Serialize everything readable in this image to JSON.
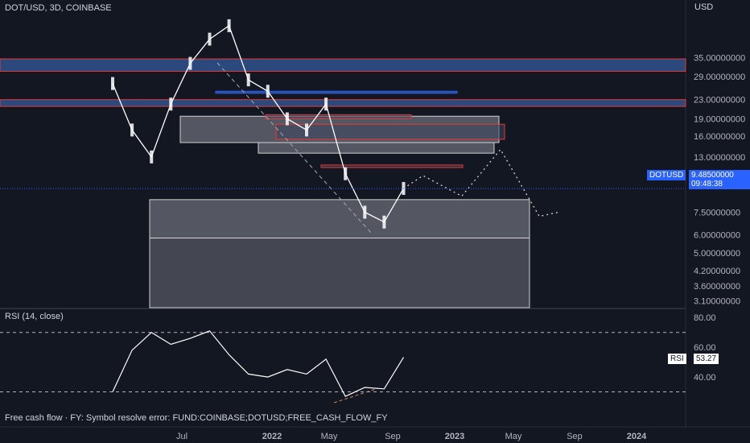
{
  "header": {
    "symbol_title": "DOT/USD, 3D, COINBASE",
    "currency": "USD"
  },
  "rsi_panel": {
    "title": "RSI (14, close)",
    "label": "RSI",
    "value": "53.27"
  },
  "footer": {
    "error_text": "Free cash flow · FY: Symbol resolve error: FUND:COINBASE;DOTUSD;FREE_CASH_FLOW_FY"
  },
  "price_tag": {
    "symbol": "DOTUSD",
    "price": "9.48500000",
    "countdown": "09:48:38"
  },
  "colors": {
    "background": "#131722",
    "candle_up": "#ffffff",
    "candle_down": "#ffffff",
    "zone_blue": "#2f4f86",
    "zone_red_border": "#e53935",
    "zone_grey": "#8a8d96",
    "accent": "#2962ff",
    "rsi_line": "#ffffff"
  },
  "chart_data": [
    {
      "type": "line",
      "title": "DOT/USD, 3D, COINBASE",
      "price_scale": "log",
      "ylim": [
        2.9,
        62
      ],
      "y_ticks": [
        "35.00000000",
        "29.00000000",
        "23.00000000",
        "19.00000000",
        "16.00000000",
        "13.00000000",
        "11.00000000",
        "7.50000000",
        "6.00000000",
        "5.00000000",
        "4.20000000",
        "3.60000000",
        "3.10000000"
      ],
      "x_ticks": [
        "Jul",
        "2022",
        "May",
        "Sep",
        "2023",
        "May",
        "Sep",
        "2024"
      ],
      "x": [
        "2021-05",
        "2021-06",
        "2021-07",
        "2021-08",
        "2021-09",
        "2021-10",
        "2021-11",
        "2021-12",
        "2022-01",
        "2022-02",
        "2022-03",
        "2022-04",
        "2022-05",
        "2022-06",
        "2022-07",
        "2022-08"
      ],
      "series": [
        {
          "values": [
            27,
            17,
            13,
            22,
            33,
            42,
            48,
            28,
            25,
            19,
            17,
            22,
            11,
            7.5,
            6.8,
            9.5
          ]
        }
      ],
      "current_price": 9.485,
      "projection": {
        "x": [
          "2022-08",
          "2022-09",
          "2022-11",
          "2023-01",
          "2023-03",
          "2023-04"
        ],
        "values": [
          9.5,
          10.8,
          8.8,
          14.0,
          7.2,
          7.5
        ]
      },
      "zones": [
        {
          "kind": "blue",
          "low": 30.5,
          "high": 34.5
        },
        {
          "kind": "blue",
          "low": 21.5,
          "high": 23.0
        },
        {
          "kind": "blue",
          "low": 24.5,
          "high": 25.0
        },
        {
          "kind": "grey",
          "low": 15.0,
          "high": 19.5
        },
        {
          "kind": "grey",
          "low": 13.5,
          "high": 15.0
        },
        {
          "kind": "red",
          "low": 15.5,
          "high": 18.0
        },
        {
          "kind": "red",
          "low": 19.0,
          "high": 19.8
        },
        {
          "kind": "red",
          "low": 11.7,
          "high": 12.0
        },
        {
          "kind": "grey",
          "low": 5.8,
          "high": 8.5
        },
        {
          "kind": "grey-dark",
          "low": 2.9,
          "high": 5.8
        }
      ]
    },
    {
      "type": "line",
      "title": "RSI (14, close)",
      "ylim": [
        20,
        85
      ],
      "y_ticks": [
        "80.00",
        "60.00",
        "40.00"
      ],
      "levels": [
        70,
        30
      ],
      "x": [
        "2021-05",
        "2021-06",
        "2021-07",
        "2021-08",
        "2021-09",
        "2021-10",
        "2021-11",
        "2021-12",
        "2022-01",
        "2022-02",
        "2022-03",
        "2022-04",
        "2022-05",
        "2022-06",
        "2022-07",
        "2022-08"
      ],
      "series": [
        {
          "name": "RSI",
          "values": [
            30,
            58,
            70,
            62,
            66,
            71,
            55,
            42,
            40,
            45,
            42,
            52,
            27,
            33,
            32,
            53.27
          ]
        }
      ]
    }
  ]
}
